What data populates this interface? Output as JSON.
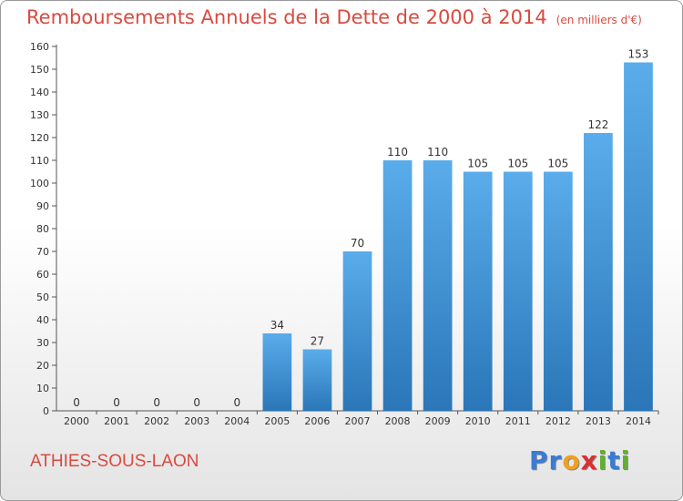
{
  "commune": "ATHIES-SOUS-LAON",
  "logo": {
    "text": "Proxiti",
    "letters": [
      "P",
      "r",
      "o",
      "x",
      "i",
      "t",
      "i"
    ],
    "colors": [
      "#3a7bd5",
      "#3a7bd5",
      "#f0a020",
      "#d93030",
      "#60b030",
      "#3a7bd5",
      "#60b030"
    ]
  },
  "colors": {
    "bar_light": "#5aacea",
    "bar_dark": "#2a76b8",
    "title": "#d94a3f"
  },
  "chart_data": {
    "type": "bar",
    "title": "Remboursements Annuels de la Dette de 2000 à 2014",
    "unit": "(en milliers d'€)",
    "categories": [
      "2000",
      "2001",
      "2002",
      "2003",
      "2004",
      "2005",
      "2006",
      "2007",
      "2008",
      "2009",
      "2010",
      "2011",
      "2012",
      "2013",
      "2014"
    ],
    "values": [
      0,
      0,
      0,
      0,
      0,
      34,
      27,
      70,
      110,
      110,
      105,
      105,
      105,
      122,
      153
    ],
    "ylim": [
      0,
      160
    ],
    "yticks": [
      0,
      10,
      20,
      30,
      40,
      50,
      60,
      70,
      80,
      90,
      100,
      110,
      120,
      130,
      140,
      150,
      160
    ],
    "xlabel": "",
    "ylabel": "",
    "grid": false
  }
}
